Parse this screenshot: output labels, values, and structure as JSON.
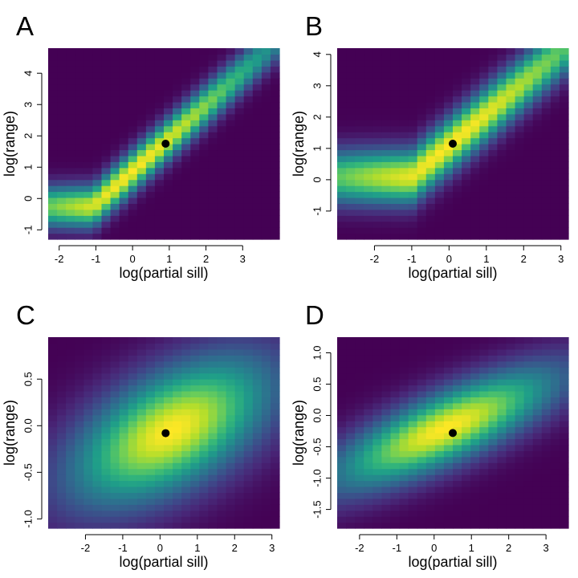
{
  "colormap": "viridis",
  "colors": {
    "viridis_stops": [
      "#440154",
      "#482878",
      "#3e4989",
      "#31688e",
      "#26828e",
      "#1f9e89",
      "#35b779",
      "#6ece58",
      "#b5de2b",
      "#fde725"
    ],
    "point": "#000000"
  },
  "chart_data": [
    {
      "type": "heatmap",
      "panel_label": "A",
      "xlabel": "log(partial sill)",
      "ylabel": "log(range)",
      "xlim": [
        -2.3,
        4.0
      ],
      "ylim": [
        -1.3,
        4.8
      ],
      "xticks": [
        -2,
        -1,
        0,
        1,
        2,
        3
      ],
      "yticks": [
        -1,
        0,
        1,
        2,
        3,
        4
      ],
      "grid": {
        "nx": 26,
        "ny": 32
      },
      "surface": {
        "ridge": "bent",
        "mode_x": 0.0,
        "mode_y": 0.88,
        "slope": 1.05,
        "floor_y": -0.25,
        "width": 0.42,
        "decay": 0.06
      },
      "point": {
        "x": 0.9,
        "y": 1.75
      }
    },
    {
      "type": "heatmap",
      "panel_label": "B",
      "xlabel": "log(partial sill)",
      "ylabel": "log(range)",
      "xlim": [
        -3.0,
        3.2
      ],
      "ylim": [
        -1.9,
        4.2
      ],
      "xticks": [
        -2,
        -1,
        0,
        1,
        2,
        3
      ],
      "yticks": [
        -1,
        0,
        1,
        2,
        3,
        4
      ],
      "grid": {
        "nx": 26,
        "ny": 32
      },
      "surface": {
        "ridge": "bent",
        "mode_x": 0.0,
        "mode_y": 1.1,
        "slope": 1.0,
        "floor_y": 0.1,
        "width": 0.55,
        "decay": 0.04
      },
      "point": {
        "x": 0.1,
        "y": 1.15
      }
    },
    {
      "type": "heatmap",
      "panel_label": "C",
      "xlabel": "log(partial sill)",
      "ylabel": "log(range)",
      "xlim": [
        -3.0,
        3.2
      ],
      "ylim": [
        -1.1,
        0.95
      ],
      "xticks": [
        -2,
        -1,
        0,
        1,
        2,
        3
      ],
      "yticks": [
        -1.0,
        -0.5,
        0.0,
        0.5
      ],
      "ytick_labels": [
        "-1.0",
        "-0.5",
        "0.0",
        "0.5"
      ],
      "grid": {
        "nx": 26,
        "ny": 32
      },
      "surface": {
        "ridge": "ellipse",
        "mode_x": 0.3,
        "mode_y": -0.05,
        "sx": 1.7,
        "sy": 0.5,
        "rho": 0.55
      },
      "point": {
        "x": 0.15,
        "y": -0.08
      }
    },
    {
      "type": "heatmap",
      "panel_label": "D",
      "xlabel": "log(partial sill)",
      "ylabel": "log(range)",
      "xlim": [
        -2.6,
        3.6
      ],
      "ylim": [
        -1.8,
        1.25
      ],
      "xticks": [
        -2,
        -1,
        0,
        1,
        2,
        3
      ],
      "yticks": [
        -1.5,
        -1.0,
        -0.5,
        0.0,
        0.5,
        1.0
      ],
      "ytick_labels": [
        "-1.5",
        "-1.0",
        "-0.5",
        "0.0",
        "0.5",
        "1.0"
      ],
      "grid": {
        "nx": 26,
        "ny": 32
      },
      "surface": {
        "ridge": "ellipse",
        "mode_x": 0.3,
        "mode_y": -0.2,
        "sx": 1.9,
        "sy": 0.6,
        "rho": 0.78
      },
      "point": {
        "x": 0.5,
        "y": -0.28
      }
    }
  ]
}
